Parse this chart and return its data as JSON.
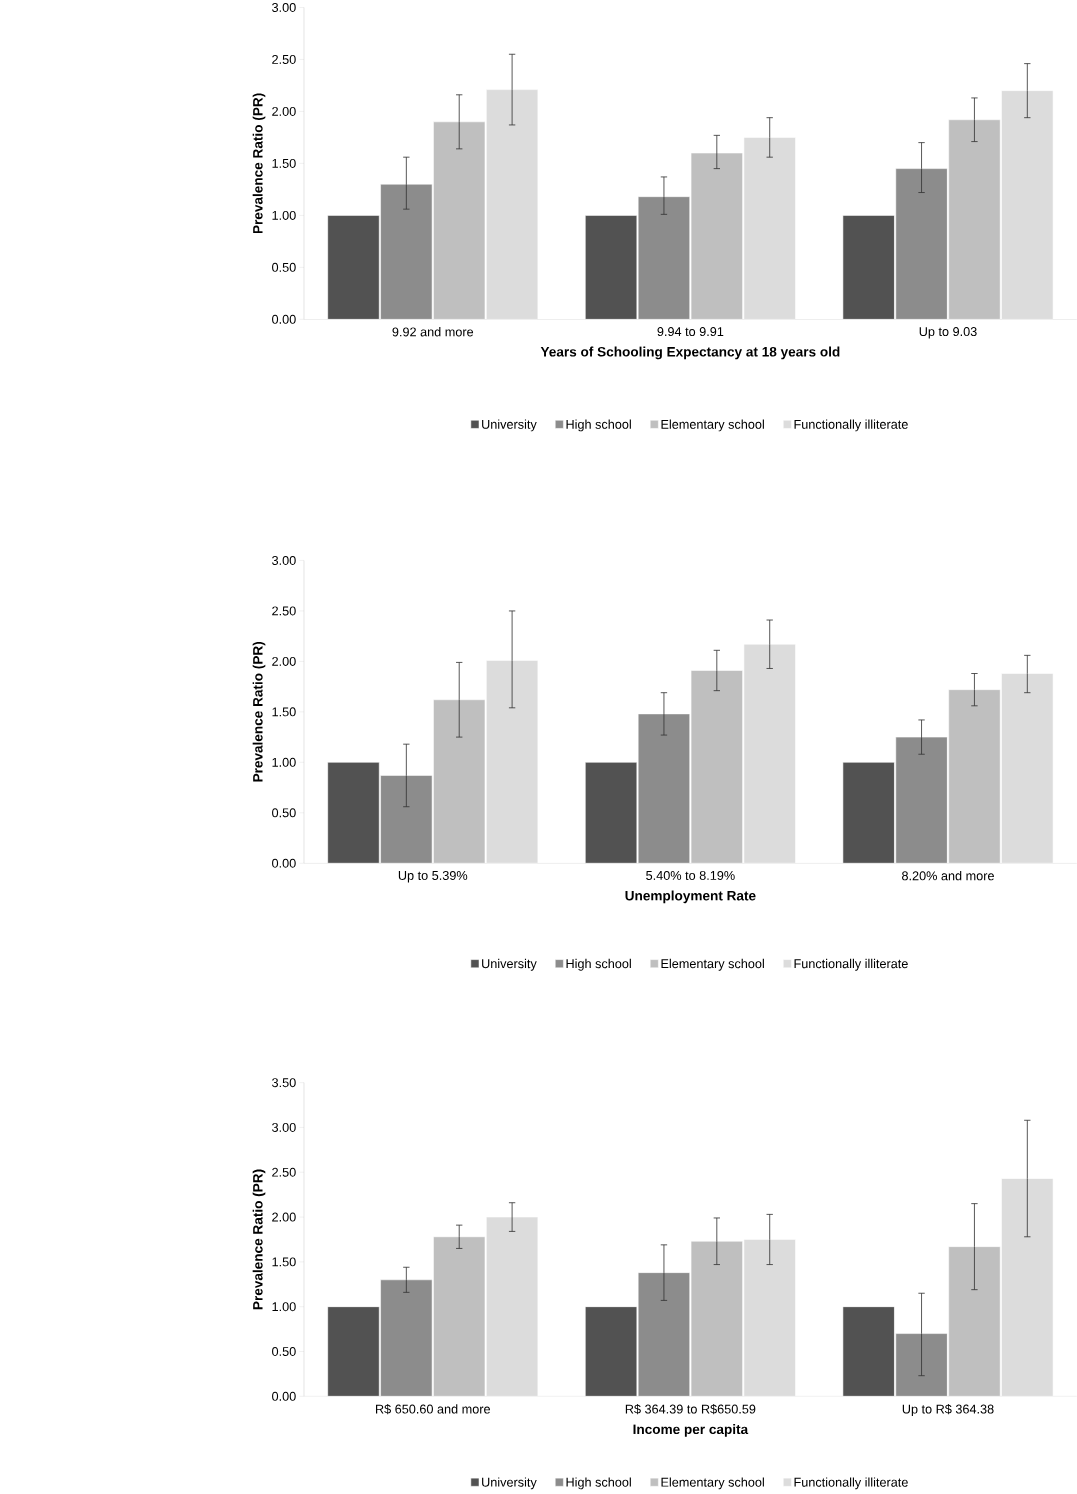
{
  "chart_data": [
    {
      "type": "bar",
      "xlabel": "Years of Schooling Expectancy at 18 years old",
      "ylabel": "Prevalence Ratio (PR)",
      "categories": [
        "9.92 and more",
        "9.94 to 9.91",
        "Up to 9.03"
      ],
      "ylim": [
        0,
        3
      ],
      "yticks": [
        {
          "value": 0,
          "label": "0.00"
        },
        {
          "value": 0.5,
          "label": "0.50"
        },
        {
          "value": 1,
          "label": "1.00"
        },
        {
          "value": 1.5,
          "label": "1.50"
        },
        {
          "value": 2,
          "label": "2.00"
        },
        {
          "value": 2.5,
          "label": "2.50"
        },
        {
          "value": 3,
          "label": "3.00"
        }
      ],
      "legend": "bottom",
      "grid": false,
      "series": [
        {
          "name": "University",
          "color": "#525252",
          "values": [
            1.0,
            1.0,
            1.0
          ],
          "errors": [
            null,
            null,
            null
          ]
        },
        {
          "name": "High school",
          "color": "#8c8c8c",
          "values": [
            1.3,
            1.18,
            1.45
          ],
          "errors": [
            [
              1.06,
              1.56
            ],
            [
              1.01,
              1.37
            ],
            [
              1.22,
              1.7
            ]
          ]
        },
        {
          "name": "Elementary school",
          "color": "#bfbfbf",
          "values": [
            1.9,
            1.6,
            1.92
          ],
          "errors": [
            [
              1.64,
              2.16
            ],
            [
              1.45,
              1.77
            ],
            [
              1.71,
              2.13
            ]
          ]
        },
        {
          "name": "Functionally illiterate",
          "color": "#dcdcdc",
          "values": [
            2.21,
            1.75,
            2.2
          ],
          "errors": [
            [
              1.87,
              2.55
            ],
            [
              1.56,
              1.94
            ],
            [
              1.94,
              2.46
            ]
          ]
        }
      ]
    },
    {
      "type": "bar",
      "xlabel": "Unemployment Rate",
      "ylabel": "Prevalence Ratio (PR)",
      "categories": [
        "Up to 5.39%",
        "5.40% to 8.19%",
        "8.20% and more"
      ],
      "ylim": [
        0,
        3
      ],
      "yticks": [
        {
          "value": 0,
          "label": "0.00"
        },
        {
          "value": 0.5,
          "label": "0.50"
        },
        {
          "value": 1,
          "label": "1.00"
        },
        {
          "value": 1.5,
          "label": "1.50"
        },
        {
          "value": 2,
          "label": "2.00"
        },
        {
          "value": 2.5,
          "label": "2.50"
        },
        {
          "value": 3,
          "label": "3.00"
        }
      ],
      "legend": "bottom",
      "grid": false,
      "series": [
        {
          "name": "University",
          "color": "#525252",
          "values": [
            1.0,
            1.0,
            1.0
          ],
          "errors": [
            null,
            null,
            null
          ]
        },
        {
          "name": "High school",
          "color": "#8c8c8c",
          "values": [
            0.87,
            1.48,
            1.25
          ],
          "errors": [
            [
              0.56,
              1.18
            ],
            [
              1.27,
              1.69
            ],
            [
              1.08,
              1.42
            ]
          ]
        },
        {
          "name": "Elementary school",
          "color": "#bfbfbf",
          "values": [
            1.62,
            1.91,
            1.72
          ],
          "errors": [
            [
              1.25,
              1.99
            ],
            [
              1.71,
              2.11
            ],
            [
              1.56,
              1.88
            ]
          ]
        },
        {
          "name": "Functionally illiterate",
          "color": "#dcdcdc",
          "values": [
            2.01,
            2.17,
            1.88
          ],
          "errors": [
            [
              1.54,
              2.5
            ],
            [
              1.93,
              2.41
            ],
            [
              1.69,
              2.06
            ]
          ]
        }
      ]
    },
    {
      "type": "bar",
      "xlabel": "Income per capita",
      "ylabel": "Prevalence Ratio (PR)",
      "categories": [
        "R$ 650.60 and more",
        "R$ 364.39 to R$650.59",
        "Up to R$ 364.38"
      ],
      "ylim": [
        0,
        3.5
      ],
      "yticks": [
        {
          "value": 0,
          "label": "0.00"
        },
        {
          "value": 0.5,
          "label": "0.50"
        },
        {
          "value": 1,
          "label": "1.00"
        },
        {
          "value": 1.5,
          "label": "1.50"
        },
        {
          "value": 2,
          "label": "2.00"
        },
        {
          "value": 2.5,
          "label": "2.50"
        },
        {
          "value": 3,
          "label": "3.00"
        },
        {
          "value": 3.5,
          "label": "3.50"
        }
      ],
      "legend": "bottom",
      "grid": false,
      "series": [
        {
          "name": "University",
          "color": "#525252",
          "values": [
            1.0,
            1.0,
            1.0
          ],
          "errors": [
            null,
            null,
            null
          ]
        },
        {
          "name": "High school",
          "color": "#8c8c8c",
          "values": [
            1.3,
            1.38,
            0.7
          ],
          "errors": [
            [
              1.16,
              1.44
            ],
            [
              1.07,
              1.69
            ],
            [
              0.23,
              1.15
            ]
          ]
        },
        {
          "name": "Elementary school",
          "color": "#bfbfbf",
          "values": [
            1.78,
            1.73,
            1.67
          ],
          "errors": [
            [
              1.65,
              1.91
            ],
            [
              1.47,
              1.99
            ],
            [
              1.19,
              2.15
            ]
          ]
        },
        {
          "name": "Functionally illiterate",
          "color": "#dcdcdc",
          "values": [
            2.0,
            1.75,
            2.43
          ],
          "errors": [
            [
              1.84,
              2.16
            ],
            [
              1.47,
              2.03
            ],
            [
              1.78,
              3.08
            ]
          ]
        }
      ]
    }
  ]
}
